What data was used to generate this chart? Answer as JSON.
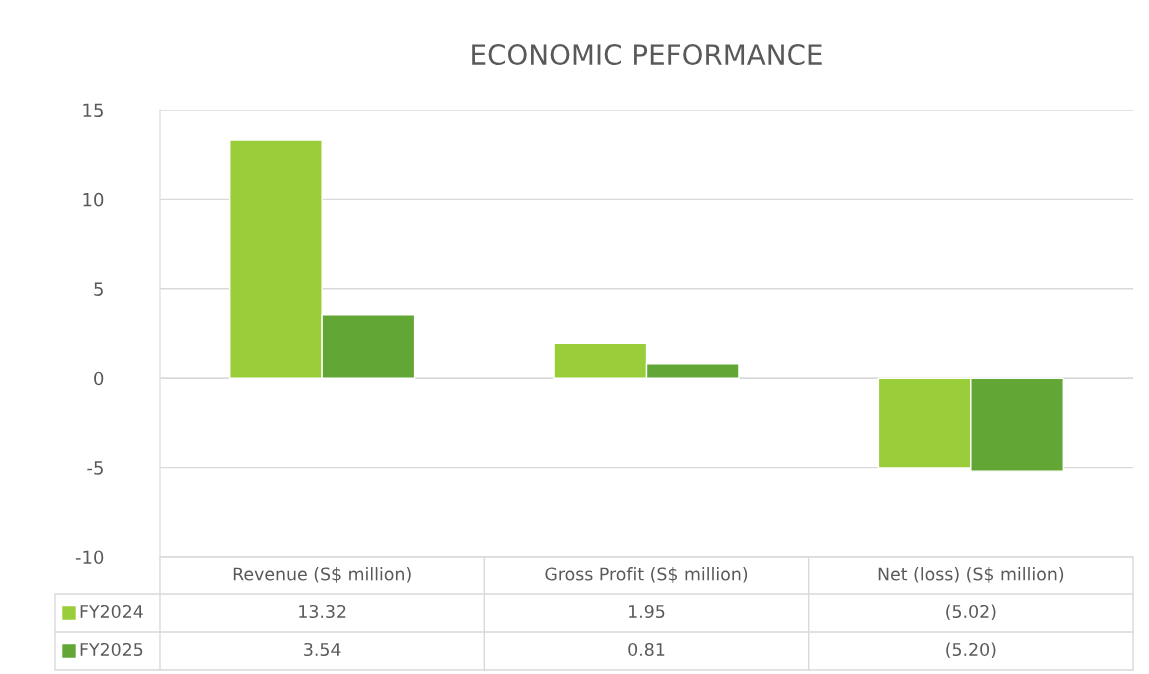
{
  "chart_data": {
    "type": "bar",
    "title": "ECONOMIC PEFORMANCE",
    "categories": [
      "Revenue (S$ million)",
      "Gross Profit (S$ million)",
      "Net (loss) (S$ million)"
    ],
    "series": [
      {
        "name": "FY2024",
        "color": "#9acd3a",
        "values": [
          13.32,
          1.95,
          -5.02
        ],
        "value_labels": [
          "13.32",
          "1.95",
          "(5.02)"
        ]
      },
      {
        "name": "FY2025",
        "color": "#62a736",
        "values": [
          3.54,
          0.81,
          -5.2
        ],
        "value_labels": [
          "3.54",
          "0.81",
          "(5.20)"
        ]
      }
    ],
    "ylim": [
      -10,
      15
    ],
    "yticks": [
      -10,
      -5,
      0,
      5,
      10,
      15
    ],
    "grid": "y",
    "legend": "bottom"
  }
}
